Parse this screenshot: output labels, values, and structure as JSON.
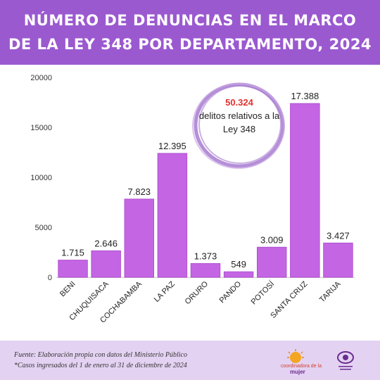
{
  "header": {
    "title_line1": "NÚMERO DE DENUNCIAS EN EL MARCO",
    "title_line2": "DE LA LEY 348 POR DEPARTAMENTO, 2024"
  },
  "badge": {
    "number": "50.324",
    "text": "delitos relativos a la Ley 348"
  },
  "footer": {
    "source": "Fuente: Elaboración propia con datos del  Ministerio Público",
    "note": "*Casos ingresados del 1 de enero al 31 de diciembre de 2024",
    "logo_text_1": "coordinadora de la",
    "logo_text_2": "mujer"
  },
  "colors": {
    "header": "#9b59d0",
    "bar": "#c466e4",
    "bar_stroke": "#b04fd2",
    "badge": "#a77bd0",
    "footer": "#e4d2f2",
    "highlight": "#e0312e"
  },
  "chart_data": {
    "type": "bar",
    "categories": [
      "BENI",
      "CHUQUISACA",
      "COCHABAMBA",
      "LA PAZ",
      "ORURO",
      "PANDO",
      "POTOSÍ",
      "SANTA CRUZ",
      "TARIJA"
    ],
    "values": [
      1715,
      2646,
      7823,
      12395,
      1373,
      549,
      3009,
      17388,
      3427
    ],
    "value_labels": [
      "1.715",
      "2.646",
      "7.823",
      "12.395",
      "1.373",
      "549",
      "3.009",
      "17.388",
      "3.427"
    ],
    "yticks": [
      "0",
      "5000",
      "10000",
      "15000",
      "20000"
    ],
    "ylim": [
      0,
      20000
    ],
    "grid": false
  }
}
